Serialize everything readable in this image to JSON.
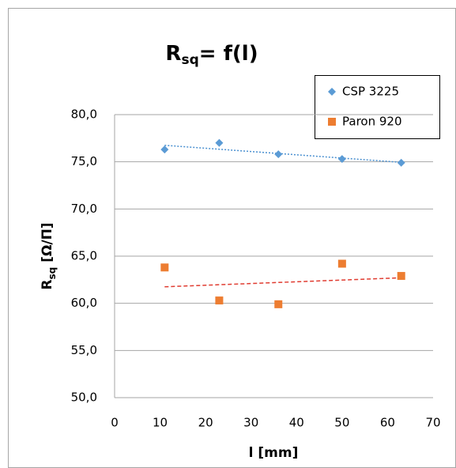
{
  "chart_data": {
    "type": "scatter",
    "title_parts": [
      "R",
      "sq",
      "= f(l)"
    ],
    "ylabel_parts": [
      "R",
      "sq",
      " [Ω/Π]"
    ],
    "xlabel": "l [mm]",
    "series": [
      {
        "name": "CSP 3225",
        "color": "#5b9bd5",
        "marker": "diamond",
        "trendline_color": "#4a90d0",
        "x": [
          11,
          23,
          36,
          50,
          63
        ],
        "values": [
          76.3,
          77.0,
          75.8,
          75.3,
          74.9
        ]
      },
      {
        "name": "Paron 920",
        "color": "#ed7d31",
        "marker": "square",
        "trendline_color": "#e03c31",
        "x": [
          11,
          23,
          36,
          50,
          63
        ],
        "values": [
          63.8,
          60.3,
          59.9,
          64.2,
          62.9
        ]
      }
    ],
    "trendline": true,
    "xlim": [
      0,
      70
    ],
    "xticks": [
      0,
      10,
      20,
      30,
      40,
      50,
      60,
      70
    ],
    "ylim": [
      50,
      80
    ],
    "yticks": [
      {
        "value": 50,
        "label": "50,0"
      },
      {
        "value": 55,
        "label": "55,0"
      },
      {
        "value": 60,
        "label": "60,0"
      },
      {
        "value": 65,
        "label": "65,0"
      },
      {
        "value": 70,
        "label": "70,0"
      },
      {
        "value": 75,
        "label": "75,0"
      },
      {
        "value": 80,
        "label": "80,0"
      }
    ],
    "grid": true,
    "legend": "top-right"
  }
}
